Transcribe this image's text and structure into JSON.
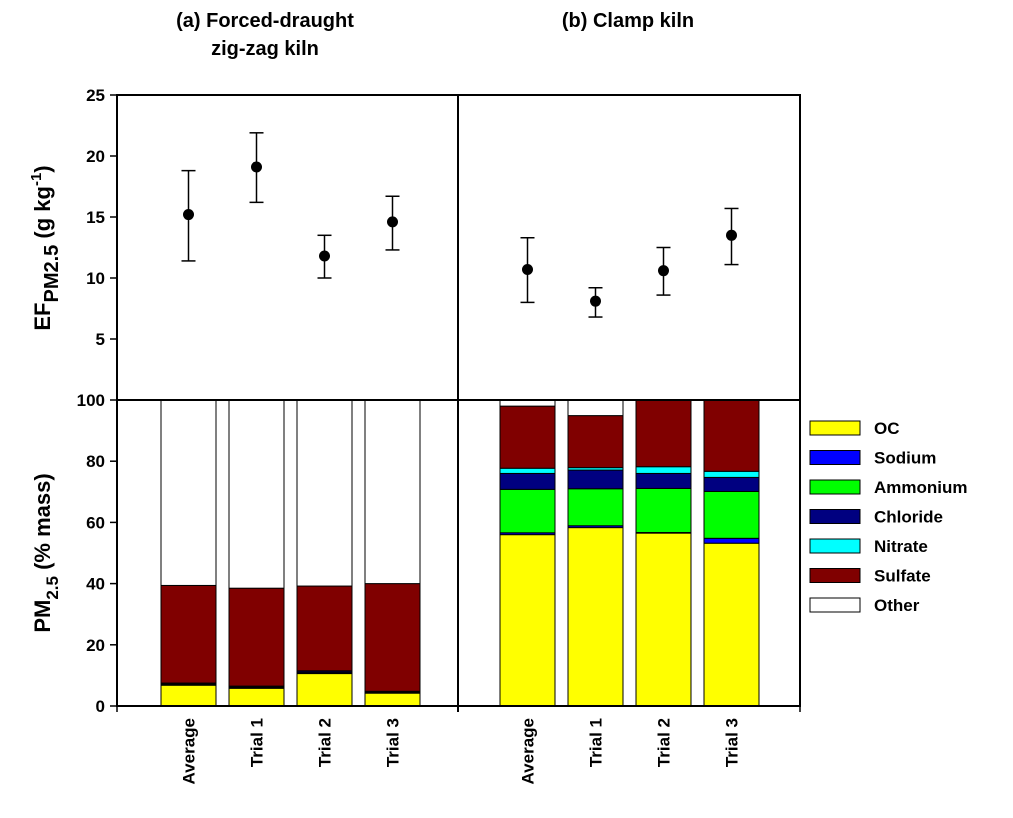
{
  "chart_data": [
    {
      "type": "scatter",
      "panel": "a-top",
      "title": [
        "(a) Forced-draught",
        "zig-zag kiln"
      ],
      "ylabel": {
        "main": "EF",
        "sub": "PM2.5",
        "unit_pre": " (g kg",
        "unit_sup": "-1",
        "unit_post": ")"
      },
      "ylim": [
        0,
        25
      ],
      "yticks": [
        "5",
        "10",
        "15",
        "20",
        "25"
      ],
      "categories": [
        "Average",
        "Trial 1",
        "Trial 2",
        "Trial 3"
      ],
      "values": [
        15.2,
        19.1,
        11.8,
        14.6
      ],
      "err_low": [
        11.4,
        16.2,
        10.0,
        12.3
      ],
      "err_high": [
        18.8,
        21.9,
        13.5,
        16.7
      ]
    },
    {
      "type": "scatter",
      "panel": "b-top",
      "title": [
        "(b) Clamp kiln"
      ],
      "ylim": [
        0,
        25
      ],
      "categories": [
        "Average",
        "Trial 1",
        "Trial 2",
        "Trial 3"
      ],
      "values": [
        10.7,
        8.1,
        10.6,
        13.5
      ],
      "err_low": [
        8.0,
        6.8,
        8.6,
        11.1
      ],
      "err_high": [
        13.3,
        9.2,
        12.5,
        15.7
      ]
    },
    {
      "type": "bar",
      "stacked": true,
      "panel": "a-bottom",
      "ylabel": {
        "main": "PM",
        "sub": "2.5",
        "unit": " (% mass)"
      },
      "ylim": [
        0,
        100
      ],
      "yticks": [
        "0",
        "20",
        "40",
        "60",
        "80",
        "100"
      ],
      "categories": [
        "Average",
        "Trial 1",
        "Trial 2",
        "Trial 3"
      ],
      "series": [
        {
          "name": "OC",
          "values": [
            6.8,
            5.8,
            10.6,
            4.2
          ]
        },
        {
          "name": "Sodium",
          "values": [
            0.1,
            0.1,
            0.1,
            0.1
          ]
        },
        {
          "name": "Ammonium",
          "values": [
            0.2,
            0.2,
            0.2,
            0.2
          ]
        },
        {
          "name": "Chloride",
          "values": [
            0.3,
            0.3,
            0.5,
            0.2
          ]
        },
        {
          "name": "Nitrate",
          "values": [
            0.1,
            0.1,
            0.1,
            0.1
          ]
        },
        {
          "name": "Sulfate",
          "values": [
            31.9,
            32.0,
            27.7,
            35.2
          ]
        },
        {
          "name": "Other",
          "values": [
            60.6,
            61.5,
            60.8,
            60.0
          ]
        }
      ]
    },
    {
      "type": "bar",
      "stacked": true,
      "panel": "b-bottom",
      "ylim": [
        0,
        100
      ],
      "categories": [
        "Average",
        "Trial 1",
        "Trial 2",
        "Trial 3"
      ],
      "series": [
        {
          "name": "OC",
          "values": [
            56.0,
            58.3,
            56.5,
            53.2
          ]
        },
        {
          "name": "Sodium",
          "values": [
            0.6,
            0.6,
            0.2,
            1.6
          ]
        },
        {
          "name": "Ammonium",
          "values": [
            14.2,
            12.1,
            14.4,
            15.3
          ]
        },
        {
          "name": "Chloride",
          "values": [
            5.2,
            6.1,
            4.9,
            4.6
          ]
        },
        {
          "name": "Nitrate",
          "values": [
            1.7,
            0.8,
            2.2,
            2.0
          ]
        },
        {
          "name": "Sulfate",
          "values": [
            20.3,
            17.0,
            21.8,
            23.3
          ]
        },
        {
          "name": "Other",
          "values": [
            2.0,
            5.1,
            0.0,
            0.0
          ]
        }
      ]
    }
  ],
  "legend": {
    "placement": "right",
    "items": [
      {
        "name": "OC",
        "color": "#ffff00"
      },
      {
        "name": "Sodium",
        "color": "#0000ff"
      },
      {
        "name": "Ammonium",
        "color": "#00ff00"
      },
      {
        "name": "Chloride",
        "color": "#000080"
      },
      {
        "name": "Nitrate",
        "color": "#00ffff"
      },
      {
        "name": "Sulfate",
        "color": "#800000"
      },
      {
        "name": "Other",
        "color": "#ffffff"
      }
    ]
  }
}
